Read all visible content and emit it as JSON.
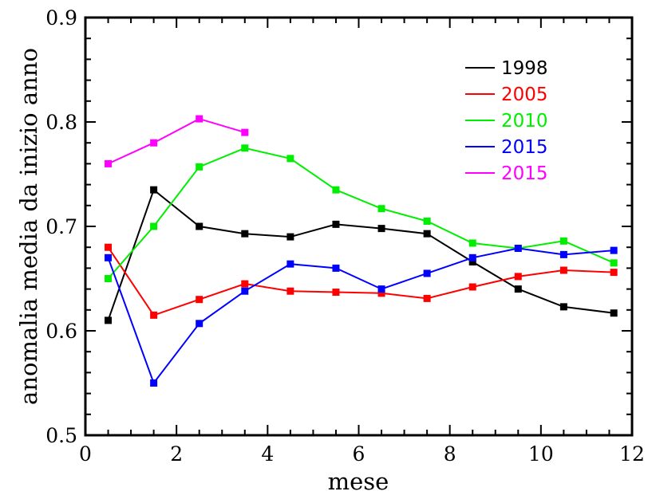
{
  "chart_data": {
    "type": "line",
    "title": "",
    "xlabel": "mese",
    "ylabel": "anomalia media da inizio anno",
    "xlim": [
      0,
      12
    ],
    "ylim": [
      0.5,
      0.9
    ],
    "x_ticks": [
      {
        "value": 0,
        "label": "0"
      },
      {
        "value": 2,
        "label": "2"
      },
      {
        "value": 4,
        "label": "4"
      },
      {
        "value": 6,
        "label": "6"
      },
      {
        "value": 8,
        "label": "8"
      },
      {
        "value": 10,
        "label": "10"
      },
      {
        "value": 12,
        "label": "12"
      }
    ],
    "y_ticks": [
      {
        "value": 0.5,
        "label": "0.5"
      },
      {
        "value": 0.6,
        "label": "0.6"
      },
      {
        "value": 0.7,
        "label": "0.7"
      },
      {
        "value": 0.8,
        "label": "0.8"
      },
      {
        "value": 0.9,
        "label": "0.9"
      }
    ],
    "grid": false,
    "legend_position": "top-right",
    "series": [
      {
        "name": "1998",
        "color": "#000000",
        "x": [
          0.5,
          1.5,
          2.5,
          3.5,
          4.5,
          5.5,
          6.5,
          7.5,
          8.5,
          9.5,
          10.5,
          11.6
        ],
        "y": [
          0.61,
          0.735,
          0.7,
          0.693,
          0.69,
          0.702,
          0.698,
          0.693,
          0.666,
          0.64,
          0.623,
          0.617
        ]
      },
      {
        "name": "2005",
        "color": "#ff0000",
        "x": [
          0.5,
          1.5,
          2.5,
          3.5,
          4.5,
          5.5,
          6.5,
          7.5,
          8.5,
          9.5,
          10.5,
          11.6
        ],
        "y": [
          0.68,
          0.615,
          0.63,
          0.645,
          0.638,
          0.637,
          0.636,
          0.631,
          0.642,
          0.652,
          0.658,
          0.656
        ]
      },
      {
        "name": "2010",
        "color": "#00ee00",
        "x": [
          0.5,
          1.5,
          2.5,
          3.5,
          4.5,
          5.5,
          6.5,
          7.5,
          8.5,
          9.5,
          10.5,
          11.6
        ],
        "y": [
          0.65,
          0.7,
          0.757,
          0.775,
          0.765,
          0.735,
          0.717,
          0.705,
          0.684,
          0.679,
          0.686,
          0.665
        ]
      },
      {
        "name": "2015",
        "color": "#0000ff",
        "x": [
          0.5,
          1.5,
          2.5,
          3.5,
          4.5,
          5.5,
          6.5,
          7.5,
          8.5,
          9.5,
          10.5,
          11.6
        ],
        "y": [
          0.67,
          0.55,
          0.607,
          0.638,
          0.664,
          0.66,
          0.64,
          0.655,
          0.67,
          0.679,
          0.673,
          0.677
        ]
      },
      {
        "name": "2015",
        "color": "#ff00ff",
        "x": [
          0.5,
          1.5,
          2.5,
          3.5
        ],
        "y": [
          0.76,
          0.78,
          0.803,
          0.79
        ]
      }
    ]
  }
}
